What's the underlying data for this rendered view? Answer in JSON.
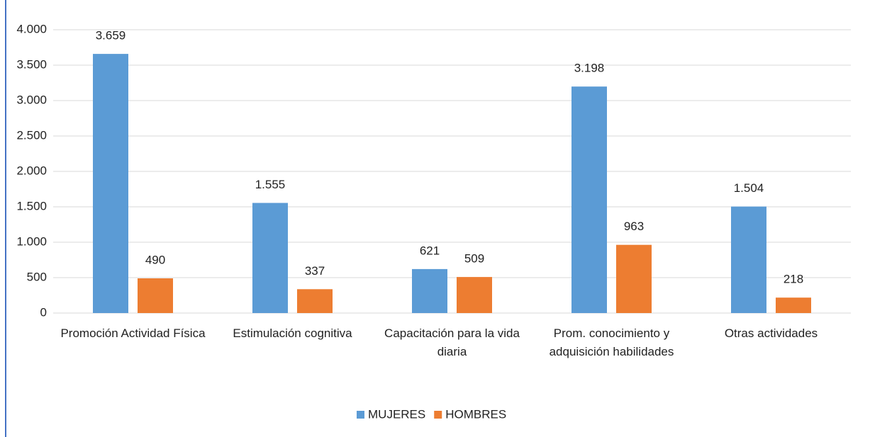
{
  "chart_data": {
    "type": "bar",
    "categories": [
      "Promoción Actividad Física",
      "Estimulación cognitiva",
      "Capacitación para la vida diaria",
      "Prom. conocimiento y adquisición habilidades",
      "Otras actividades"
    ],
    "series": [
      {
        "name": "MUJERES",
        "color": "#5b9bd5",
        "values": [
          3659,
          1555,
          621,
          3198,
          1504
        ],
        "value_labels": [
          "3.659",
          "1.555",
          "621",
          "3.198",
          "1.504"
        ]
      },
      {
        "name": "HOMBRES",
        "color": "#ed7d31",
        "values": [
          490,
          337,
          509,
          963,
          218
        ],
        "value_labels": [
          "490",
          "337",
          "509",
          "963",
          "218"
        ]
      }
    ],
    "ylim": [
      0,
      4000
    ],
    "yticks": [
      {
        "value": 0,
        "label": "0"
      },
      {
        "value": 500,
        "label": "500"
      },
      {
        "value": 1000,
        "label": "1.000"
      },
      {
        "value": 1500,
        "label": "1.500"
      },
      {
        "value": 2000,
        "label": "2.000"
      },
      {
        "value": 2500,
        "label": "2.500"
      },
      {
        "value": 3000,
        "label": "3.000"
      },
      {
        "value": 3500,
        "label": "3.500"
      },
      {
        "value": 4000,
        "label": "4.000"
      }
    ],
    "grid": true,
    "legend": "bottom"
  }
}
